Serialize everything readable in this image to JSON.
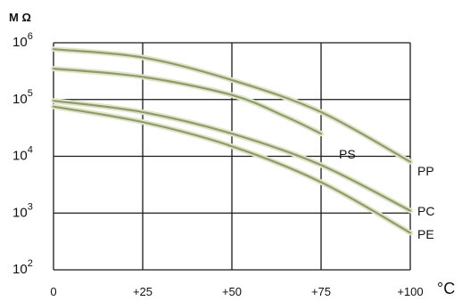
{
  "colors": {
    "grid": "#1a1a1a",
    "curve": "#8f9b6a",
    "curve_halo": "#dfe5c9",
    "text": "#111111"
  },
  "chart_data": {
    "type": "line",
    "title": "",
    "ylabel": "M Ω",
    "xlabel": "°C",
    "y_scale": "log",
    "ylim": [
      100,
      1000000
    ],
    "xlim": [
      0,
      100
    ],
    "grid": true,
    "x_ticks": [
      {
        "value": 0,
        "label": "0"
      },
      {
        "value": 25,
        "label": "+25"
      },
      {
        "value": 50,
        "label": "+50"
      },
      {
        "value": 75,
        "label": "+75"
      },
      {
        "value": 100,
        "label": "+100"
      }
    ],
    "y_ticks": [
      {
        "value": 100,
        "base": "10",
        "exp": "2"
      },
      {
        "value": 1000,
        "base": "10",
        "exp": "3"
      },
      {
        "value": 10000,
        "base": "10",
        "exp": "4"
      },
      {
        "value": 100000,
        "base": "10",
        "exp": "5"
      },
      {
        "value": 1000000,
        "base": "10",
        "exp": "6"
      }
    ],
    "series": [
      {
        "name": "PS",
        "x": [
          0,
          25,
          50,
          65,
          75
        ],
        "y": [
          350000,
          250000,
          120000,
          50000,
          25000
        ]
      },
      {
        "name": "PP",
        "x": [
          0,
          25,
          50,
          75,
          100
        ],
        "y": [
          770000,
          550000,
          220000,
          60000,
          8000
        ]
      },
      {
        "name": "PC",
        "x": [
          0,
          25,
          50,
          75,
          100
        ],
        "y": [
          95000,
          60000,
          25000,
          7000,
          1100
        ]
      },
      {
        "name": "PE",
        "x": [
          0,
          25,
          50,
          75,
          100
        ],
        "y": [
          75000,
          40000,
          15000,
          3500,
          450
        ]
      }
    ]
  }
}
